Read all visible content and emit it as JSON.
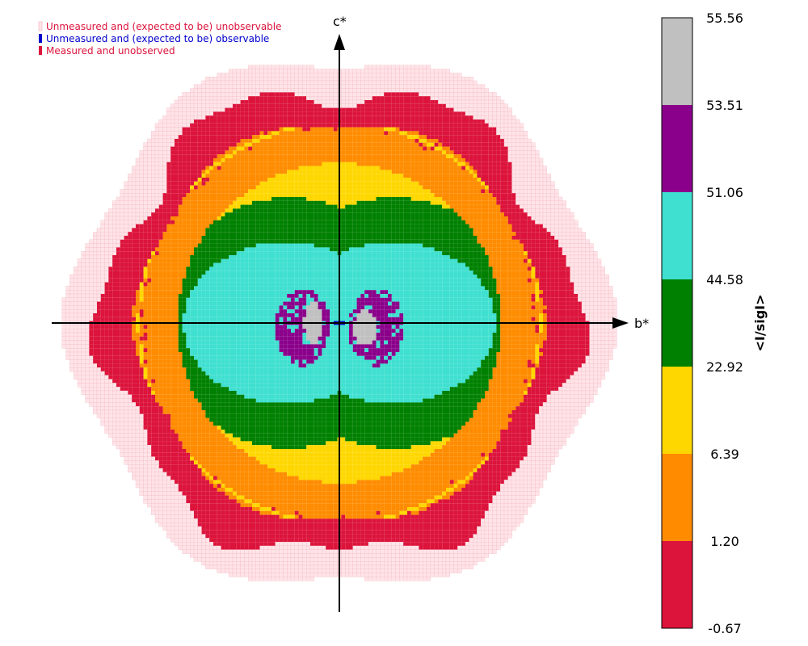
{
  "chart_data": {
    "type": "heatmap",
    "title": "",
    "xlabel": "b*",
    "ylabel": "c*",
    "colorbar_label": "<I/sigI>",
    "colorbar_ticks": [
      "55.56",
      "53.51",
      "51.06",
      "44.58",
      "22.92",
      "6.39",
      "1.20",
      "-0.67"
    ],
    "colorbar_bins": [
      {
        "range": [
          "53.51",
          "55.56"
        ],
        "color": "#c0c0c0"
      },
      {
        "range": [
          "51.06",
          "53.51"
        ],
        "color": "#8b008b"
      },
      {
        "range": [
          "44.58",
          "51.06"
        ],
        "color": "#40e0d0"
      },
      {
        "range": [
          "22.92",
          "44.58"
        ],
        "color": "#008000"
      },
      {
        "range": [
          "6.39",
          "22.92"
        ],
        "color": "#ffd700"
      },
      {
        "range": [
          "1.20",
          "6.39"
        ],
        "color": "#ff8c00"
      },
      {
        "range": [
          "-0.67",
          "1.20"
        ],
        "color": "#dc143c"
      }
    ],
    "legend": [
      {
        "label": "Unmeasured and (expected to be) unobservable",
        "color": "#ffe4e8",
        "text_color": "#dc143c"
      },
      {
        "label": "Unmeasured and (expected to be) observable",
        "color": "#0000cd",
        "text_color": "#0000cd"
      },
      {
        "label": "Measured and unobserved",
        "color": "#dc143c",
        "text_color": "#dc143c"
      }
    ],
    "legend_position": "top-left",
    "grid": false
  }
}
